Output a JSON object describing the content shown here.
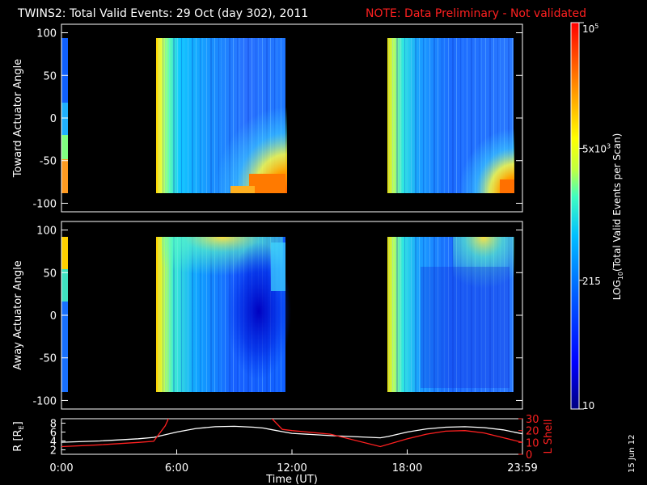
{
  "header": {
    "title": "TWINS2: Total Valid Events: 29 Oct (day 302), 2011",
    "note": "NOTE: Data Preliminary - Not validated"
  },
  "footer": {
    "stamp": "15 Jun 12"
  },
  "chart_data": [
    {
      "type": "heatmap",
      "panel": "top",
      "ylabel": "Toward Actuator Angle",
      "ylim": [
        -110,
        110
      ],
      "yticks": [
        100,
        50,
        0,
        -50,
        -100
      ],
      "xlim": [
        0,
        24
      ],
      "data_blocks_hours": [
        [
          0,
          0.1
        ],
        [
          4.8,
          11.6
        ],
        [
          16.6,
          23.5
        ]
      ],
      "gaps_hours": [
        [
          0.1,
          4.8
        ],
        [
          11.6,
          16.6
        ]
      ]
    },
    {
      "type": "heatmap",
      "panel": "bottom",
      "ylabel": "Away Actuator Angle",
      "ylim": [
        -110,
        110
      ],
      "yticks": [
        100,
        50,
        0,
        -50,
        -100
      ],
      "xlim": [
        0,
        24
      ],
      "data_blocks_hours": [
        [
          0,
          0.1
        ],
        [
          4.8,
          11.6
        ],
        [
          16.6,
          23.5
        ]
      ],
      "gaps_hours": [
        [
          0.1,
          4.8
        ],
        [
          11.6,
          16.6
        ]
      ]
    },
    {
      "type": "line",
      "panel": "ephemeris",
      "xlabel": "Time (UT)",
      "xticks": [
        "0:00",
        "6:00",
        "12:00",
        "18:00",
        "23:59"
      ],
      "xlim": [
        0,
        24
      ],
      "ylabel_left": "R [R",
      "ylabel_left_sub": "E",
      "ylabel_left_close": "]",
      "ylim_left": [
        1,
        9
      ],
      "yticks_left": [
        8,
        6,
        4,
        2
      ],
      "ylabel_right": "L Shell",
      "ylim_right": [
        0,
        30
      ],
      "yticks_right": [
        30,
        20,
        10,
        0
      ],
      "series": [
        {
          "color": "#ffffff",
          "axis": "left",
          "x": [
            0,
            2,
            4,
            4.8,
            6,
            7,
            8,
            9,
            10,
            10.5,
            11,
            11.5,
            12,
            14,
            16.6,
            17,
            18,
            19,
            20,
            21,
            22,
            23,
            24
          ],
          "y": [
            3.7,
            4.0,
            4.5,
            4.8,
            6.0,
            6.8,
            7.2,
            7.3,
            7.1,
            6.9,
            6.5,
            6.1,
            5.7,
            5.2,
            4.7,
            5.0,
            6.0,
            6.7,
            7.1,
            7.2,
            7.0,
            6.5,
            5.6
          ]
        },
        {
          "color": "#ff2020",
          "axis": "right",
          "x": [
            0,
            2,
            4,
            4.8,
            5.4,
            5.6,
            10.9,
            11.5,
            12,
            14,
            16.6,
            18,
            19,
            20,
            21,
            22,
            23,
            24
          ],
          "y": [
            6.5,
            8,
            10,
            11,
            24,
            31,
            31,
            21,
            20,
            17,
            6.5,
            13,
            17,
            19.5,
            20,
            18,
            14,
            10
          ]
        }
      ]
    },
    {
      "type": "heatmap",
      "panel": "colorbar",
      "label_prefix": "LOG",
      "label_sub": "10",
      "label_suffix": "(Total Valid Events per Scan)",
      "scale": "log",
      "ticks": [
        {
          "base": "10",
          "exp": "5",
          "value": 100000
        },
        {
          "base": "5x10",
          "exp": "3",
          "value": 5000
        },
        {
          "base": "215",
          "exp": "",
          "value": 215
        },
        {
          "base": "10",
          "exp": "",
          "value": 10
        }
      ],
      "range": [
        10,
        100000
      ],
      "colors": [
        "#000080",
        "#0000ff",
        "#0060ff",
        "#00c0ff",
        "#40ffc0",
        "#c0ff40",
        "#ffff00",
        "#ff8000",
        "#ff0000"
      ]
    }
  ]
}
